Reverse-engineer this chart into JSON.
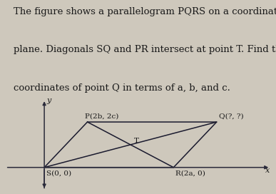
{
  "title_lines": [
    "The figure shows a parallelogram PQRS on a coordinate",
    "plane. Diagonals SQ and PR intersect at point T. Find the",
    "coordinates of point Q in terms of a, b, and c."
  ],
  "title_fontsize": 9.5,
  "bg_color": "#cec8bc",
  "points": {
    "S": [
      0,
      0
    ],
    "P": [
      2,
      3
    ],
    "Q": [
      8,
      3
    ],
    "R": [
      6,
      0
    ]
  },
  "point_labels": {
    "S": "S(0, 0)",
    "P": "P(2b, 2c)",
    "Q": "Q(?, ?)",
    "R": "R(2a, 0)",
    "T": "T"
  },
  "T_point": [
    4.0,
    1.5
  ],
  "axis_color": "#2a2a3a",
  "line_color": "#1a1a2e",
  "text_color": "#1a1a1a",
  "label_fontsize": 7.5,
  "figsize": [
    3.87,
    2.72
  ],
  "dpi": 100,
  "xlim": [
    -1.8,
    10.5
  ],
  "ylim": [
    -1.5,
    4.5
  ]
}
